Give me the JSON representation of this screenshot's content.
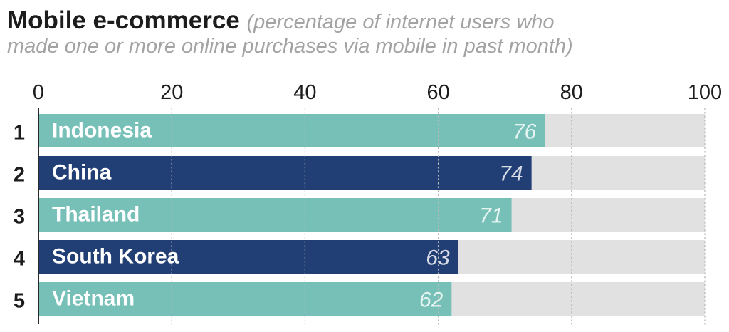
{
  "header": {
    "title": "Mobile e-commerce",
    "subtitle_part1": "(percentage of internet users who",
    "subtitle_part2": "made one or more online purchases via mobile in past month)"
  },
  "colors": {
    "light_bar": "#76c0b8",
    "dark_bar": "#213f74",
    "track": "#e1e1e1",
    "axis": "#2a2a2a",
    "grid": "#b9b9b9"
  },
  "chart_data": {
    "type": "bar",
    "orientation": "horizontal",
    "title": "Mobile e-commerce",
    "subtitle": "(percentage of internet users who made one or more online purchases via mobile in past month)",
    "xlabel": "",
    "ylabel": "",
    "xlim": [
      0,
      100
    ],
    "x_ticks": [
      0,
      20,
      40,
      60,
      80,
      100
    ],
    "x_tick_labels": [
      "0",
      "20",
      "40",
      "60",
      "80",
      "100"
    ],
    "grid": true,
    "bars": [
      {
        "rank": "1",
        "country": "Indonesia",
        "value": 76,
        "value_label": "76",
        "color": "light"
      },
      {
        "rank": "2",
        "country": "China",
        "value": 74,
        "value_label": "74",
        "color": "dark"
      },
      {
        "rank": "3",
        "country": "Thailand",
        "value": 71,
        "value_label": "71",
        "color": "light"
      },
      {
        "rank": "4",
        "country": "South Korea",
        "value": 63,
        "value_label": "63",
        "color": "dark"
      },
      {
        "rank": "5",
        "country": "Vietnam",
        "value": 62,
        "value_label": "62",
        "color": "light"
      }
    ]
  }
}
